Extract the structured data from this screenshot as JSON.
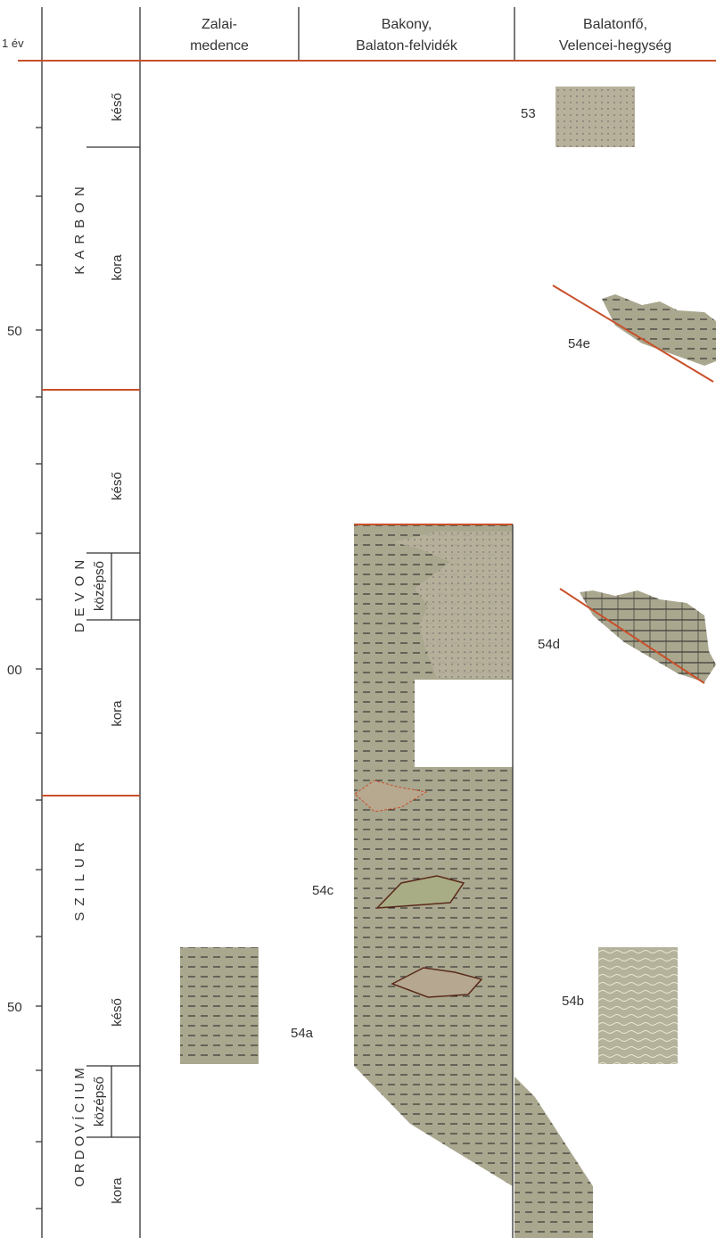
{
  "header": {
    "axis_unit": "1 év",
    "columns": [
      {
        "line1": "Zalai-",
        "line2": "medence"
      },
      {
        "line1": "Bakony,",
        "line2": "Balaton-felvidék"
      },
      {
        "line1": "Balatonfő,",
        "line2": "Velencei-hegység"
      }
    ]
  },
  "time_labels": [
    "50",
    "00",
    "50"
  ],
  "periods": [
    {
      "name": "KARBON",
      "subdivisions": [
        "késő",
        "kora"
      ]
    },
    {
      "name": "DEVON",
      "subdivisions": [
        "késő",
        "középső",
        "kora"
      ]
    },
    {
      "name": "SZILUR",
      "subdivisions": []
    },
    {
      "name": "ORDOVÍCIUM",
      "subdivisions": [
        "késő",
        "középső",
        "kora"
      ]
    }
  ],
  "units": [
    "53",
    "54e",
    "54d",
    "54c",
    "54a",
    "54b"
  ]
}
